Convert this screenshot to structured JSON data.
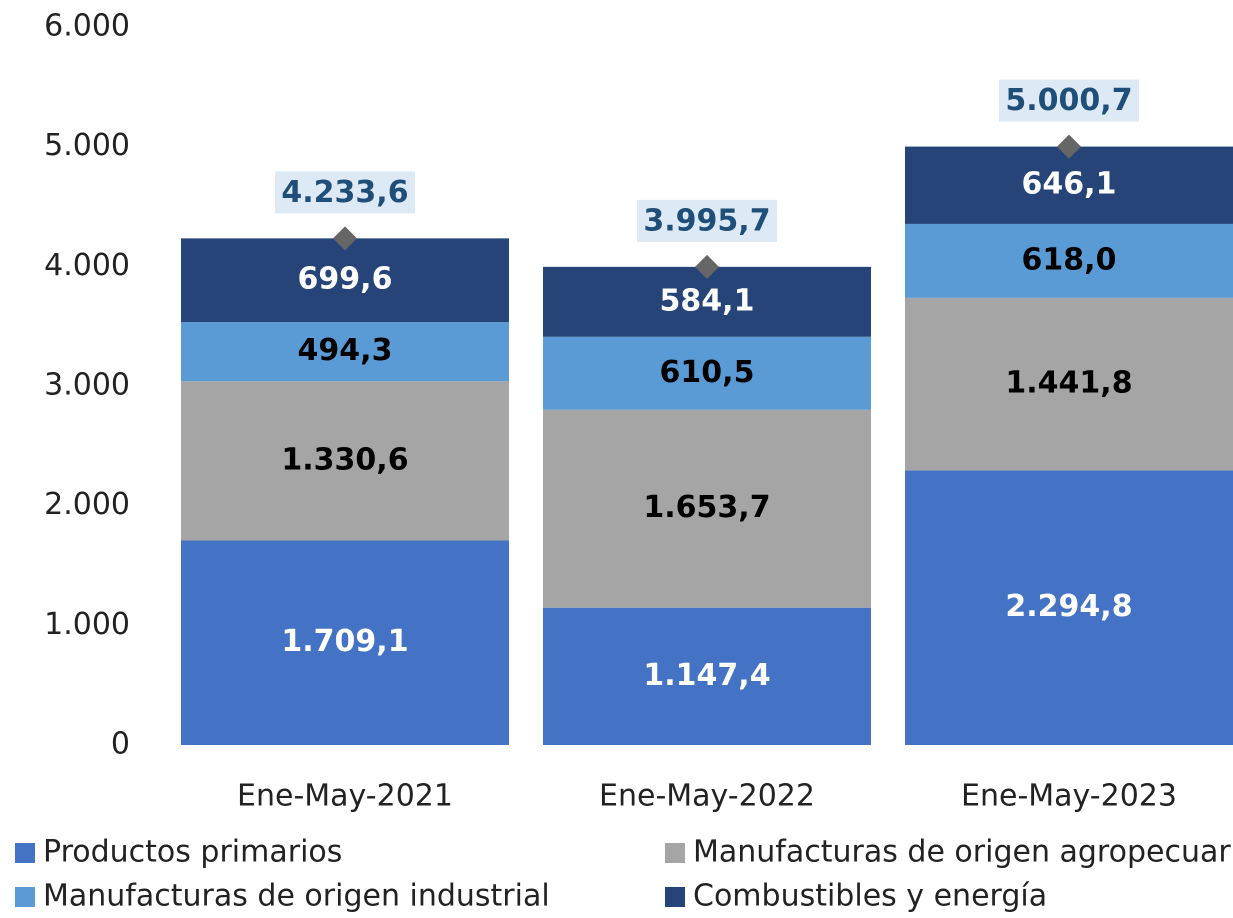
{
  "chart_data": {
    "type": "stacked_bar",
    "categories": [
      "Ene-May-2021",
      "Ene-May-2022",
      "Ene-May-2023"
    ],
    "series": [
      {
        "name": "Productos primarios",
        "color": "#4472c4",
        "label_color": "#ffffff",
        "values": [
          1709.1,
          1147.4,
          2294.8
        ],
        "value_labels": [
          "1.709,1",
          "1.147,4",
          "2.294,8"
        ]
      },
      {
        "name": "Manufacturas de origen agropecuario",
        "color": "#a5a5a5",
        "label_color": "#000000",
        "values": [
          1330.6,
          1653.7,
          1441.8
        ],
        "value_labels": [
          "1.330,6",
          "1.653,7",
          "1.441,8"
        ]
      },
      {
        "name": "Manufacturas de origen industrial",
        "color": "#5b9bd5",
        "label_color": "#000000",
        "values": [
          494.3,
          610.5,
          618.0
        ],
        "value_labels": [
          "494,3",
          "610,5",
          "618,0"
        ]
      },
      {
        "name": "Combustibles y energía",
        "color": "#264478",
        "label_color": "#ffffff",
        "values": [
          699.6,
          584.1,
          646.1
        ],
        "value_labels": [
          "699,6",
          "584,1",
          "646,1"
        ]
      }
    ],
    "totals": {
      "color": "#666666",
      "values": [
        4233.6,
        3995.7,
        5000.7
      ],
      "value_labels": [
        "4.233,6",
        "3.995,7",
        "5.000,7"
      ]
    },
    "ylim": [
      0,
      6000
    ],
    "yticks": [
      0,
      {
        "value": 1000,
        "label": "1.000"
      },
      {
        "value": 2000,
        "label": "2.000"
      },
      {
        "value": 3000,
        "label": "3.000"
      },
      {
        "value": 4000,
        "label": "4.000"
      },
      {
        "value": 5000,
        "label": "5.000"
      },
      {
        "value": 6000,
        "label": "6.000"
      }
    ],
    "grid": false,
    "legend": "bottom"
  }
}
